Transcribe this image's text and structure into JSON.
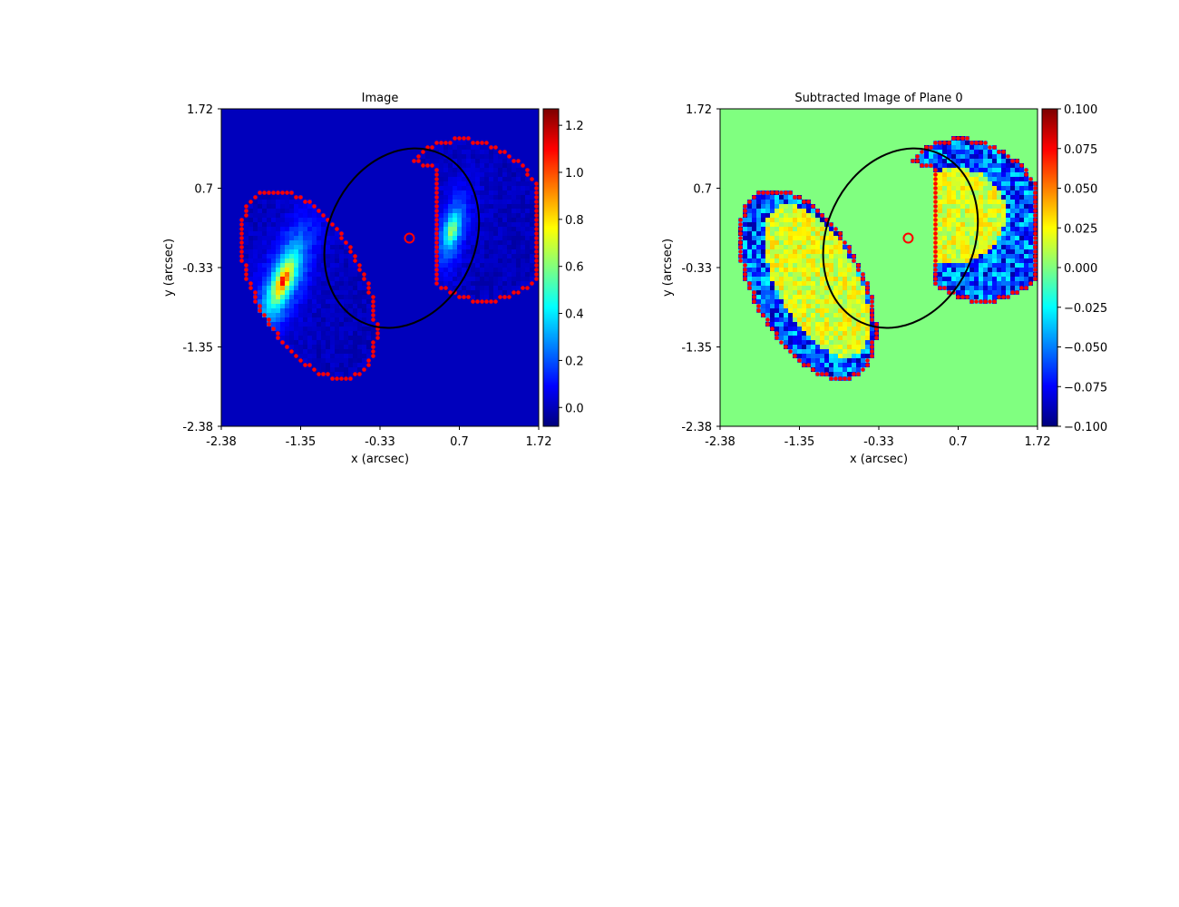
{
  "chart_data": [
    {
      "type": "heatmap",
      "title": "Image",
      "xlabel": "x (arcsec)",
      "ylabel": "y (arcsec)",
      "xticks": [
        "-2.38",
        "-1.35",
        "-0.33",
        "0.7",
        "1.72"
      ],
      "yticks": [
        "1.72",
        "0.7",
        "-0.33",
        "-1.35",
        "-2.38"
      ],
      "xlim": [
        -2.38,
        1.72
      ],
      "ylim": [
        -2.38,
        1.72
      ],
      "colormap": "jet",
      "colorbar": {
        "min": -0.08,
        "max": 1.27,
        "ticks": [
          "0.0",
          "0.2",
          "0.4",
          "0.6",
          "0.8",
          "1.0",
          "1.2"
        ]
      },
      "background_value": 0.0,
      "sources": [
        {
          "x": -1.58,
          "y": -0.5,
          "peak": 1.27,
          "sigma_major": 0.55,
          "sigma_minor": 0.18,
          "angle_deg": 68
        },
        {
          "x": 0.6,
          "y": 0.15,
          "peak": 0.8,
          "sigma_major": 0.4,
          "sigma_minor": 0.15,
          "angle_deg": 75
        }
      ],
      "critical_curve": {
        "x": -0.05,
        "y": 0.05,
        "a": 1.2,
        "b": 0.95,
        "angle_deg": 65
      },
      "center_marker": {
        "x": 0.05,
        "y": 0.05
      },
      "mask_border_color": "#ff0000"
    },
    {
      "type": "heatmap",
      "title": "Subtracted Image of Plane 0",
      "xlabel": "x (arcsec)",
      "ylabel": "y (arcsec)",
      "xticks": [
        "-2.38",
        "-1.35",
        "-0.33",
        "0.7",
        "1.72"
      ],
      "yticks": [
        "1.72",
        "0.7",
        "-0.33",
        "-1.35",
        "-2.38"
      ],
      "xlim": [
        -2.38,
        1.72
      ],
      "ylim": [
        -2.38,
        1.72
      ],
      "colormap": "jet",
      "colorbar": {
        "min": -0.1,
        "max": 0.1,
        "ticks": [
          "0.100",
          "0.075",
          "0.050",
          "0.025",
          "0.000",
          "−0.025",
          "−0.050",
          "−0.075",
          "−0.100"
        ]
      },
      "background_value": 0.0,
      "critical_curve": {
        "x": -0.05,
        "y": 0.05,
        "a": 1.2,
        "b": 0.95,
        "angle_deg": 65
      },
      "center_marker": {
        "x": 0.05,
        "y": 0.05
      },
      "mask_border_color": "#ff0000"
    }
  ]
}
